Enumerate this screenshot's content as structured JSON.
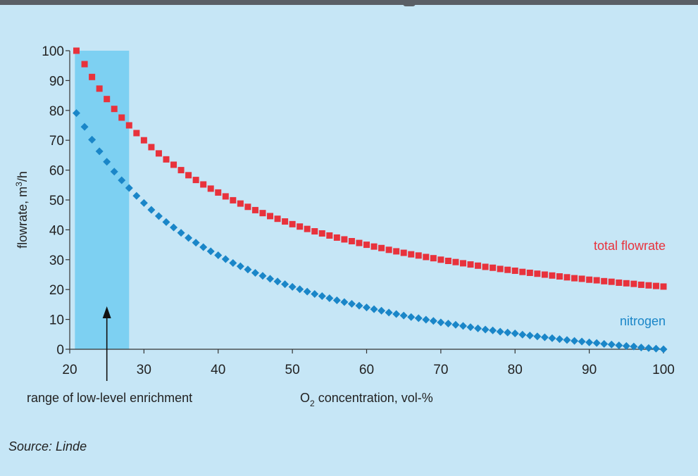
{
  "chart_data": {
    "type": "scatter",
    "xlabel_main": "O",
    "xlabel_sub": "2",
    "xlabel_rest": " concentration, vol-%",
    "ylabel_main": "flowrate, m",
    "ylabel_sup": "3",
    "ylabel_rest": "/h",
    "xlim": [
      20,
      100
    ],
    "ylim": [
      0,
      100
    ],
    "x_ticks": [
      20,
      30,
      40,
      50,
      60,
      70,
      80,
      90,
      100
    ],
    "y_ticks": [
      0,
      10,
      20,
      30,
      40,
      50,
      60,
      70,
      80,
      90,
      100
    ],
    "highlight_range": [
      20.7,
      28
    ],
    "highlight_label": "range of low-level enrichment",
    "arrow_x": 25,
    "series": [
      {
        "name": "total flowrate",
        "color": "#e8323c",
        "marker": "square",
        "x": [
          20.9,
          22,
          23,
          24,
          25,
          26,
          27,
          28,
          29,
          30,
          31,
          32,
          33,
          34,
          35,
          36,
          37,
          38,
          39,
          40,
          41,
          42,
          43,
          44,
          45,
          46,
          47,
          48,
          49,
          50,
          51,
          52,
          53,
          54,
          55,
          56,
          57,
          58,
          59,
          60,
          61,
          62,
          63,
          64,
          65,
          66,
          67,
          68,
          69,
          70,
          71,
          72,
          73,
          74,
          75,
          76,
          77,
          78,
          79,
          80,
          81,
          82,
          83,
          84,
          85,
          86,
          87,
          88,
          89,
          90,
          91,
          92,
          93,
          94,
          95,
          96,
          97,
          98,
          99,
          100
        ],
        "y": [
          100,
          95.5,
          91.2,
          87.3,
          83.8,
          80.5,
          77.6,
          75.0,
          72.4,
          70.0,
          67.7,
          65.6,
          63.6,
          61.8,
          60.0,
          58.3,
          56.7,
          55.2,
          53.8,
          52.5,
          51.2,
          49.9,
          48.8,
          47.7,
          46.6,
          45.6,
          44.6,
          43.7,
          42.8,
          41.9,
          41.1,
          40.3,
          39.5,
          38.8,
          38.1,
          37.4,
          36.8,
          36.2,
          35.6,
          35.0,
          34.4,
          33.9,
          33.3,
          32.8,
          32.3,
          31.8,
          31.4,
          30.9,
          30.5,
          30.0,
          29.6,
          29.2,
          28.8,
          28.4,
          28.0,
          27.6,
          27.3,
          26.9,
          26.6,
          26.3,
          25.9,
          25.6,
          25.3,
          25.0,
          24.7,
          24.4,
          24.1,
          23.8,
          23.6,
          23.3,
          23.1,
          22.8,
          22.6,
          22.3,
          22.1,
          21.9,
          21.6,
          21.4,
          21.2,
          21.0
        ]
      },
      {
        "name": "nitrogen",
        "color": "#1a86c8",
        "marker": "diamond",
        "x": [
          20.9,
          22,
          23,
          24,
          25,
          26,
          27,
          28,
          29,
          30,
          31,
          32,
          33,
          34,
          35,
          36,
          37,
          38,
          39,
          40,
          41,
          42,
          43,
          44,
          45,
          46,
          47,
          48,
          49,
          50,
          51,
          52,
          53,
          54,
          55,
          56,
          57,
          58,
          59,
          60,
          61,
          62,
          63,
          64,
          65,
          66,
          67,
          68,
          69,
          70,
          71,
          72,
          73,
          74,
          75,
          76,
          77,
          78,
          79,
          80,
          81,
          82,
          83,
          84,
          85,
          86,
          87,
          88,
          89,
          90,
          91,
          92,
          93,
          94,
          95,
          96,
          97,
          98,
          99,
          100
        ],
        "y": [
          79.1,
          74.5,
          70.2,
          66.3,
          62.8,
          59.5,
          56.6,
          54.0,
          51.4,
          49.0,
          46.7,
          44.6,
          42.6,
          40.8,
          39.0,
          37.3,
          35.7,
          34.2,
          32.8,
          31.5,
          30.2,
          28.9,
          27.8,
          26.7,
          25.6,
          24.6,
          23.6,
          22.7,
          21.8,
          20.9,
          20.1,
          19.3,
          18.5,
          17.8,
          17.1,
          16.4,
          15.8,
          15.2,
          14.6,
          14.0,
          13.4,
          12.9,
          12.3,
          11.8,
          11.3,
          10.8,
          10.4,
          9.9,
          9.5,
          9.0,
          8.6,
          8.2,
          7.8,
          7.4,
          7.0,
          6.6,
          6.3,
          5.9,
          5.6,
          5.3,
          4.9,
          4.6,
          4.3,
          4.0,
          3.7,
          3.4,
          3.1,
          2.8,
          2.6,
          2.3,
          2.1,
          1.8,
          1.6,
          1.3,
          1.1,
          0.9,
          0.6,
          0.4,
          0.2,
          0.0
        ]
      }
    ]
  },
  "source": "Source: Linde"
}
